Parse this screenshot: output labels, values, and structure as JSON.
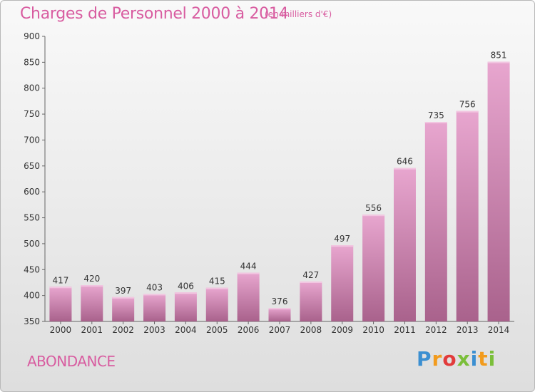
{
  "header": {
    "title": "Charges de Personnel 2000 à 2014",
    "unit": "(en milliers d'€)"
  },
  "footer": {
    "commune": "ABONDANCE",
    "brand": "Proxiti"
  },
  "colors": {
    "accent": "#d85ca0",
    "bar_top": "#e8a6cf",
    "bar_bottom": "#a9628c",
    "brand_letters": [
      "#3b8fd1",
      "#f29b1d",
      "#e23b3b",
      "#7bbf3a",
      "#3b8fd1",
      "#f29b1d",
      "#7bbf3a"
    ]
  },
  "chart_data": {
    "type": "bar",
    "categories": [
      "2000",
      "2001",
      "2002",
      "2003",
      "2004",
      "2005",
      "2006",
      "2007",
      "2008",
      "2009",
      "2010",
      "2011",
      "2012",
      "2013",
      "2014"
    ],
    "values": [
      417,
      420,
      397,
      403,
      406,
      415,
      444,
      376,
      427,
      497,
      556,
      646,
      735,
      756,
      851
    ],
    "data_labels": [
      "417",
      "420",
      "397",
      "403",
      "406",
      "415",
      "444",
      "376",
      "427",
      "497",
      "556",
      "646",
      "735",
      "756",
      "851"
    ],
    "ylim": [
      350,
      900
    ],
    "yticks": [
      "350",
      "400",
      "450",
      "500",
      "550",
      "600",
      "650",
      "700",
      "750",
      "800",
      "850",
      "900"
    ],
    "xlabel": "",
    "ylabel": "",
    "grid": false,
    "legend": "none"
  }
}
